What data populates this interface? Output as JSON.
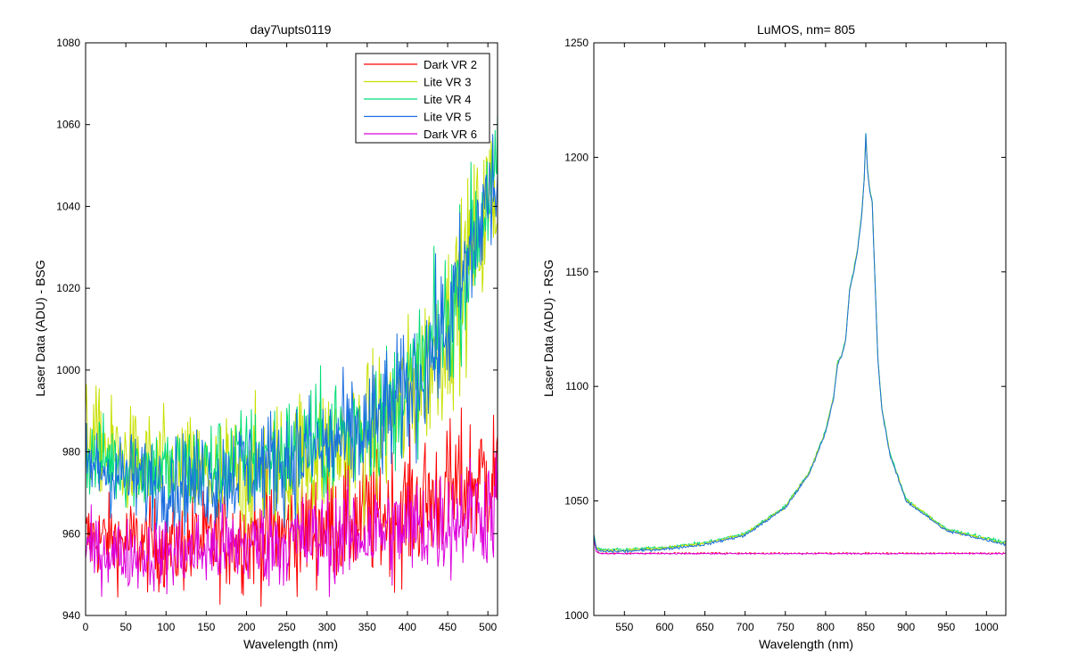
{
  "chart_data": [
    {
      "type": "line",
      "title": "day7\\upts0119",
      "xlabel": "Wavelength (nm)",
      "ylabel": "Laser Data (ADU) - BSG",
      "xlim": [
        0,
        512
      ],
      "ylim": [
        940,
        1080
      ],
      "xticks": [
        0,
        50,
        100,
        150,
        200,
        250,
        300,
        350,
        400,
        450,
        500
      ],
      "yticks": [
        940,
        960,
        980,
        1000,
        1020,
        1040,
        1060,
        1080
      ],
      "legend": "top-right",
      "grid": false,
      "series": [
        {
          "name": "Dark VR 2",
          "color": "#ff0000",
          "x": [
            0,
            50,
            100,
            150,
            200,
            250,
            300,
            350,
            400,
            450,
            500,
            512
          ],
          "values": [
            959,
            958,
            957,
            958,
            959,
            960,
            962,
            964,
            966,
            970,
            974,
            975
          ]
        },
        {
          "name": "Lite VR 3",
          "color": "#c8e000",
          "x": [
            0,
            50,
            100,
            150,
            200,
            250,
            300,
            350,
            400,
            450,
            500,
            512
          ],
          "values": [
            985,
            978,
            975,
            974,
            975,
            977,
            980,
            983,
            992,
            1010,
            1040,
            1045
          ]
        },
        {
          "name": "Lite VR 4",
          "color": "#00dd77",
          "x": [
            0,
            50,
            100,
            150,
            200,
            250,
            300,
            350,
            400,
            450,
            500,
            512
          ],
          "values": [
            979,
            977,
            975,
            976,
            978,
            980,
            983,
            987,
            995,
            1012,
            1043,
            1048
          ]
        },
        {
          "name": "Lite VR 5",
          "color": "#1a6ee0",
          "x": [
            0,
            50,
            100,
            150,
            200,
            250,
            300,
            350,
            400,
            450,
            500,
            512
          ],
          "values": [
            977,
            974,
            972,
            973,
            976,
            978,
            981,
            985,
            994,
            1010,
            1042,
            1046
          ]
        },
        {
          "name": "Dark VR 6",
          "color": "#dd00dd",
          "x": [
            0,
            50,
            100,
            150,
            200,
            250,
            300,
            350,
            400,
            450,
            500,
            512
          ],
          "values": [
            956,
            955,
            955,
            956,
            957,
            958,
            959,
            960,
            961,
            963,
            966,
            967
          ]
        }
      ]
    },
    {
      "type": "line",
      "title": "LuMOS, nm= 805",
      "xlabel": "Wavelength (nm)",
      "ylabel": "Laser Data (ADU) - RSG",
      "xlim": [
        512,
        1024
      ],
      "ylim": [
        1000,
        1250
      ],
      "xticks": [
        550,
        600,
        650,
        700,
        750,
        800,
        850,
        900,
        950,
        1000
      ],
      "yticks": [
        1000,
        1050,
        1100,
        1150,
        1200,
        1250
      ],
      "grid": false,
      "series": [
        {
          "color": "#1a6ee0",
          "x": [
            512,
            515,
            520,
            550,
            600,
            650,
            700,
            750,
            780,
            800,
            810,
            815,
            820,
            825,
            830,
            835,
            840,
            845,
            848,
            850,
            852,
            855,
            858,
            860,
            865,
            870,
            880,
            900,
            950,
            1000,
            1024
          ],
          "values": [
            1035,
            1029,
            1028,
            1028,
            1029,
            1031,
            1035,
            1047,
            1062,
            1080,
            1095,
            1110,
            1113,
            1120,
            1142,
            1150,
            1160,
            1175,
            1190,
            1210,
            1195,
            1185,
            1180,
            1160,
            1112,
            1090,
            1070,
            1050,
            1037,
            1033,
            1031
          ]
        },
        {
          "color": "#dd00dd",
          "x": [
            512,
            515,
            520,
            600,
            700,
            800,
            900,
            1000,
            1024
          ],
          "values": [
            1033,
            1028,
            1027,
            1027,
            1027,
            1027,
            1027,
            1027,
            1027
          ]
        }
      ]
    }
  ]
}
